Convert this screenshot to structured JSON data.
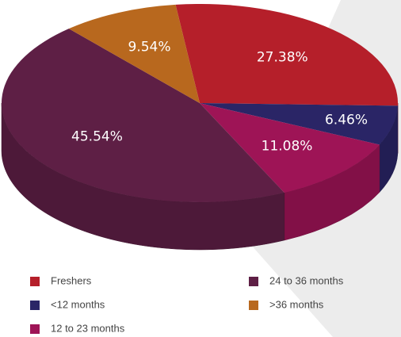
{
  "chart_data": {
    "type": "pie",
    "categories": [
      "Freshers",
      "<12 months",
      "12 to 23 months",
      "24 to 36 months",
      ">36 months"
    ],
    "values": [
      27.38,
      6.46,
      11.08,
      45.54,
      9.54
    ],
    "value_labels": [
      "27.38%",
      "6.46%",
      "11.08%",
      "45.54%",
      "9.54%"
    ],
    "colors": [
      "#b51f2a",
      "#2a2566",
      "#9e1456",
      "#5e1f45",
      "#b8681e"
    ]
  }
}
